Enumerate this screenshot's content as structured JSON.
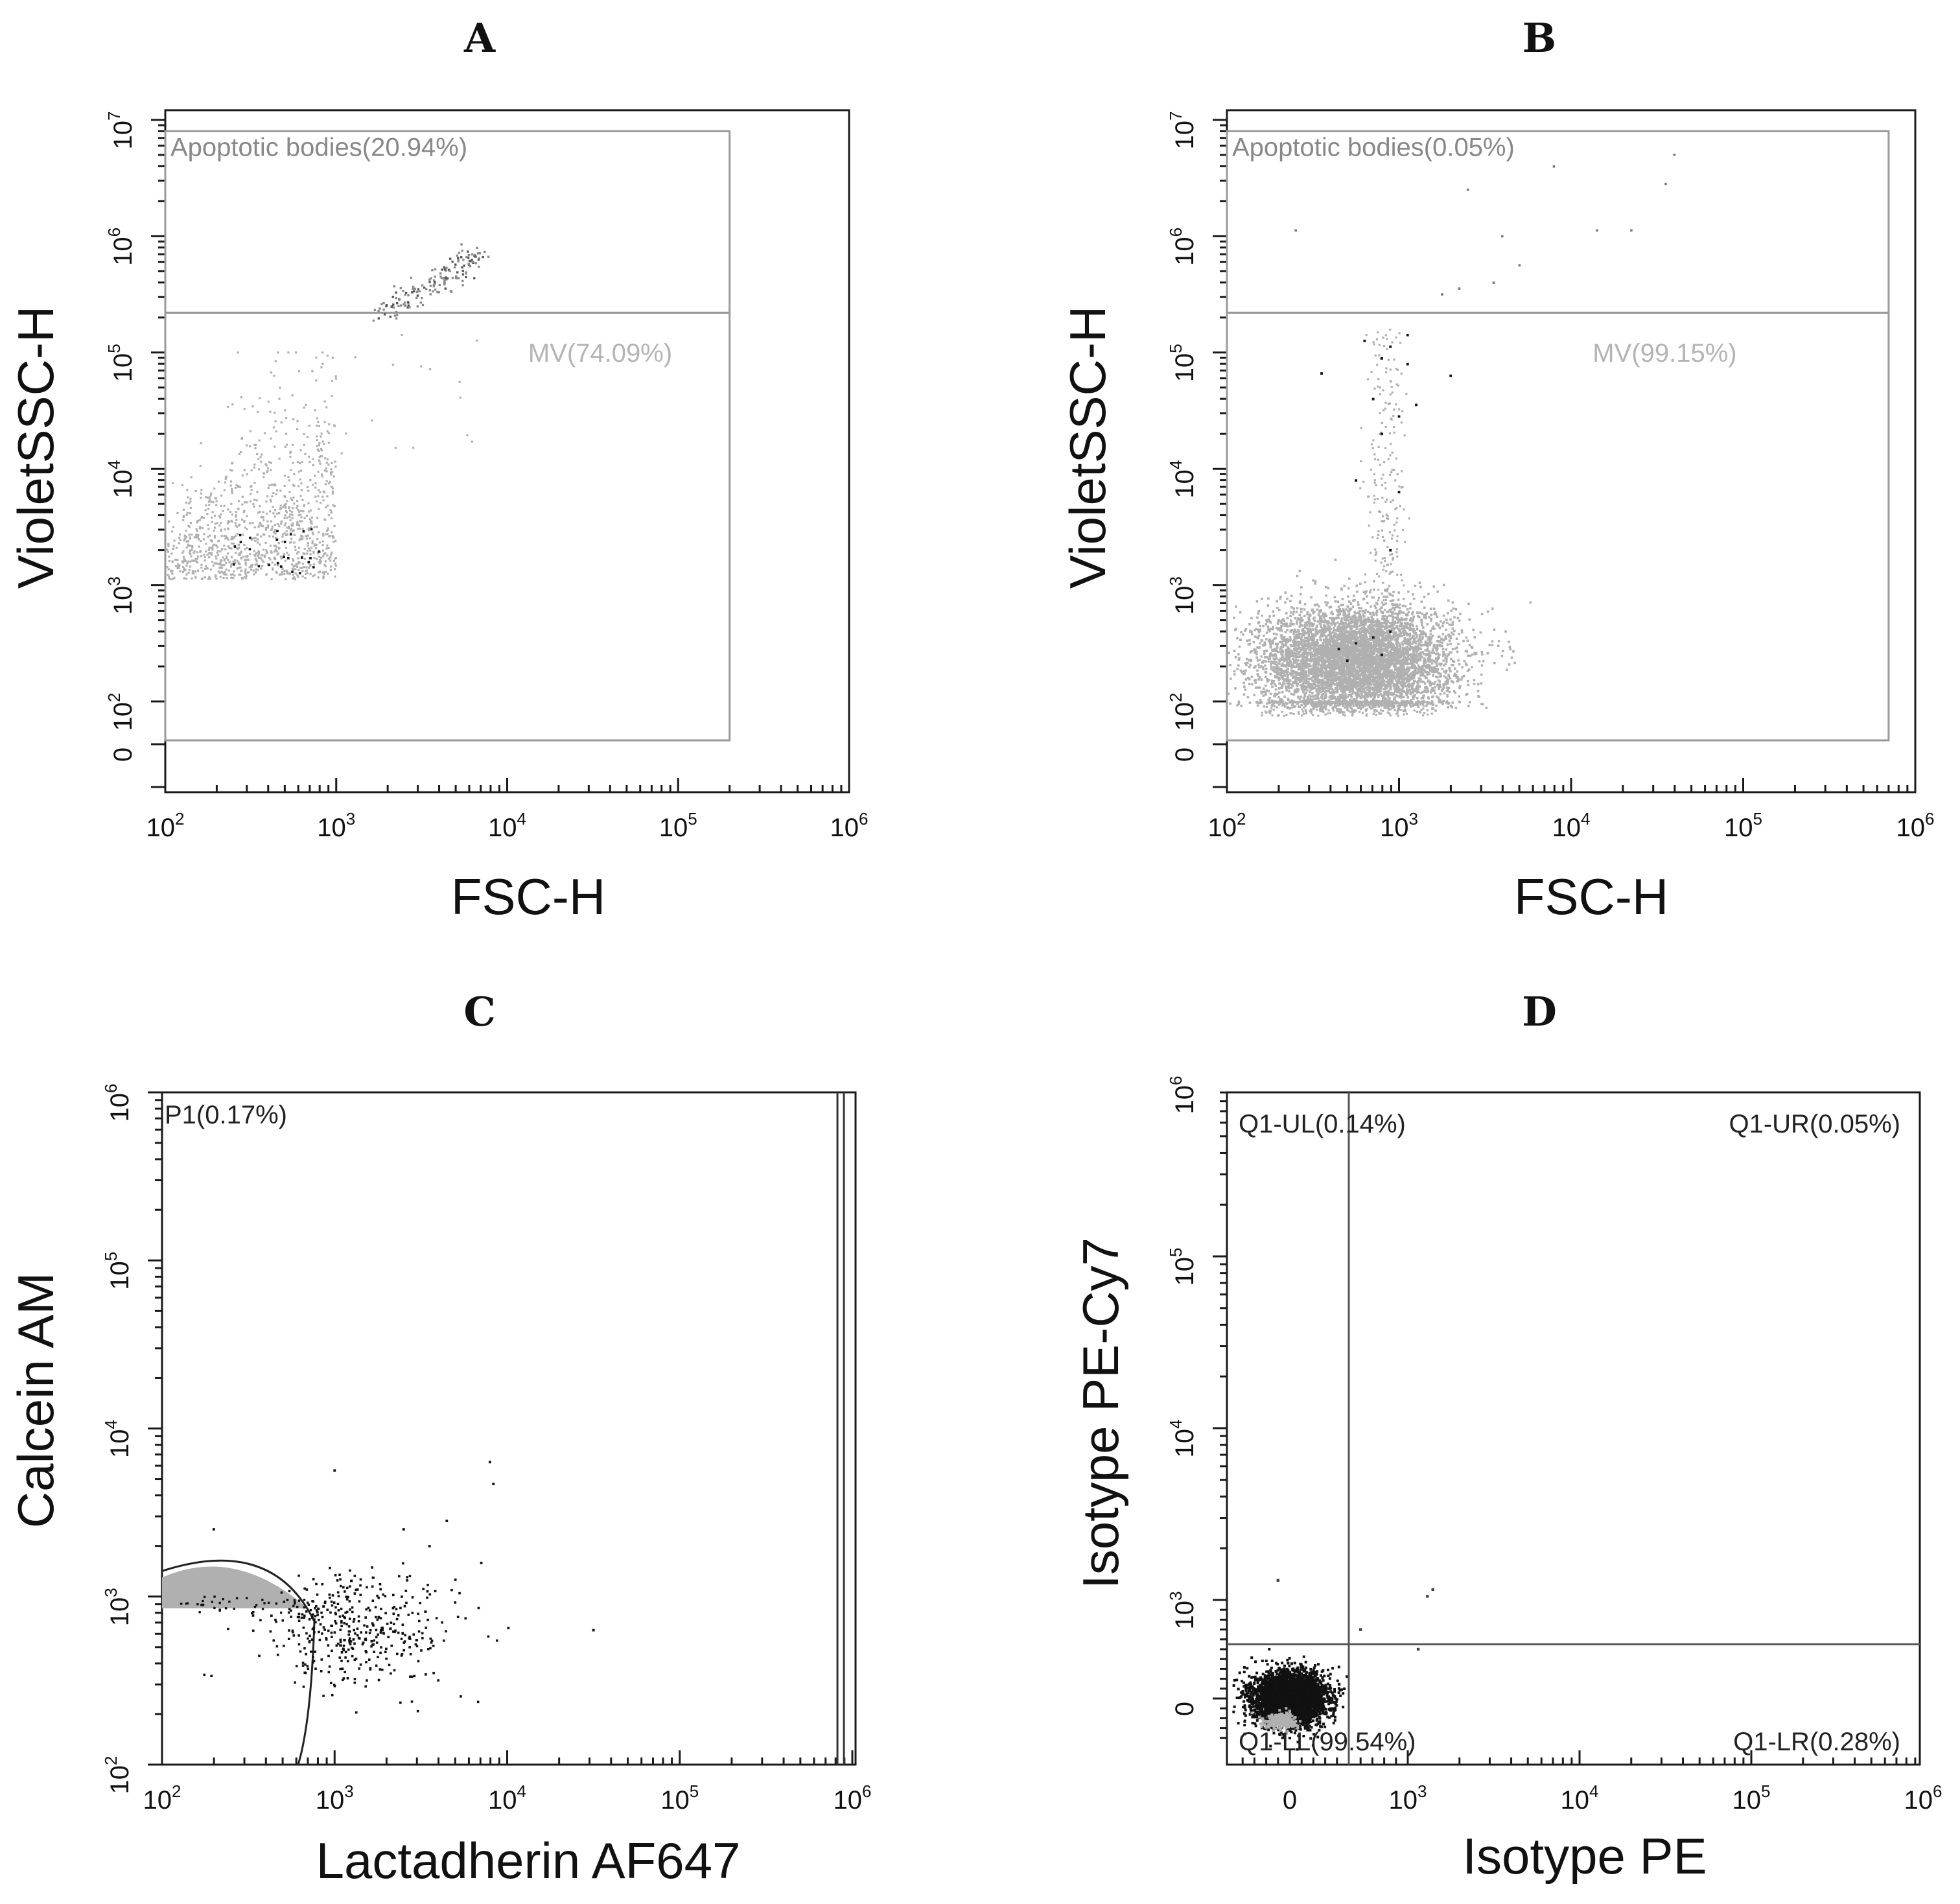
{
  "figure": {
    "colors": {
      "axis": "#1a1a1a",
      "events_light": "#b0b0b0",
      "events_mid": "#8a8a8a",
      "events_dark": "#111111",
      "gate_line": "#9a9a9a",
      "gate_text": "#888888",
      "gate_text_light": "#b4b4b4",
      "quad_line": "#555555",
      "quad_text": "#222222"
    }
  },
  "chart_data": [
    {
      "panel": "A",
      "type": "scatter",
      "xlabel": "FSC-H",
      "ylabel": "VioletSSC-H",
      "x_scale": "log",
      "y_scale": "biexponential",
      "xlim": [
        100,
        1000000
      ],
      "ylim": [
        0,
        10000000
      ],
      "x_ticks": [
        {
          "base": "10",
          "exp": "2"
        },
        {
          "base": "10",
          "exp": "3"
        },
        {
          "base": "10",
          "exp": "4"
        },
        {
          "base": "10",
          "exp": "5"
        },
        {
          "base": "10",
          "exp": "6"
        }
      ],
      "y_ticks": [
        {
          "base": "0",
          "exp": ""
        },
        {
          "base": "10",
          "exp": "2"
        },
        {
          "base": "10",
          "exp": "3"
        },
        {
          "base": "10",
          "exp": "4"
        },
        {
          "base": "10",
          "exp": "5"
        },
        {
          "base": "10",
          "exp": "6"
        },
        {
          "base": "10",
          "exp": "7"
        }
      ],
      "gates": [
        {
          "name": "Apoptotic bodies",
          "label": "Apoptotic bodies(20.94%)",
          "percent": 20.94,
          "x_range": [
            100,
            200000
          ],
          "y_range": [
            220000,
            8000000
          ]
        },
        {
          "name": "MV",
          "label": "MV(74.09%)",
          "percent": 74.09,
          "x_range": [
            100,
            200000
          ],
          "y_range": [
            0,
            220000
          ]
        }
      ],
      "populations": [
        {
          "name": "apoptotic bodies cluster",
          "x_center": 3500,
          "y_center": 350000,
          "count": 130,
          "shade": "mid"
        },
        {
          "name": "microvesicle cloud",
          "x_range": [
            100,
            1000
          ],
          "y_range": [
            1100,
            80000
          ],
          "count": 1100,
          "shade": "light"
        }
      ]
    },
    {
      "panel": "B",
      "type": "scatter",
      "xlabel": "FSC-H",
      "ylabel": "VioletSSC-H",
      "x_scale": "log",
      "y_scale": "biexponential",
      "xlim": [
        100,
        1000000
      ],
      "ylim": [
        0,
        10000000
      ],
      "x_ticks": [
        {
          "base": "10",
          "exp": "2"
        },
        {
          "base": "10",
          "exp": "3"
        },
        {
          "base": "10",
          "exp": "4"
        },
        {
          "base": "10",
          "exp": "5"
        },
        {
          "base": "10",
          "exp": "6"
        }
      ],
      "y_ticks": [
        {
          "base": "0",
          "exp": ""
        },
        {
          "base": "10",
          "exp": "2"
        },
        {
          "base": "10",
          "exp": "3"
        },
        {
          "base": "10",
          "exp": "4"
        },
        {
          "base": "10",
          "exp": "5"
        },
        {
          "base": "10",
          "exp": "6"
        },
        {
          "base": "10",
          "exp": "7"
        }
      ],
      "gates": [
        {
          "name": "Apoptotic bodies",
          "label": "Apoptotic bodies(0.05%)",
          "percent": 0.05,
          "x_range": [
            100,
            700000
          ],
          "y_range": [
            220000,
            8000000
          ]
        },
        {
          "name": "MV",
          "label": "MV(99.15%)",
          "percent": 99.15,
          "x_range": [
            100,
            700000
          ],
          "y_range": [
            0,
            220000
          ]
        }
      ],
      "populations": [
        {
          "name": "dense microvesicle population",
          "x_center": 550,
          "y_center": 250,
          "count": 6000,
          "shade": "light"
        },
        {
          "name": "vertical streak",
          "x_center": 800,
          "y_range": [
            400,
            150000
          ],
          "count": 220,
          "shade": "light"
        }
      ]
    },
    {
      "panel": "C",
      "type": "scatter",
      "xlabel": "Lactadherin AF647",
      "ylabel": "Calcein AM",
      "x_scale": "log",
      "y_scale": "log",
      "xlim": [
        100,
        1000000
      ],
      "ylim": [
        100,
        1000000
      ],
      "x_ticks": [
        {
          "base": "10",
          "exp": "2"
        },
        {
          "base": "10",
          "exp": "3"
        },
        {
          "base": "10",
          "exp": "4"
        },
        {
          "base": "10",
          "exp": "5"
        },
        {
          "base": "10",
          "exp": "6"
        }
      ],
      "y_ticks": [
        {
          "base": "10",
          "exp": "2"
        },
        {
          "base": "10",
          "exp": "3"
        },
        {
          "base": "10",
          "exp": "4"
        },
        {
          "base": "10",
          "exp": "5"
        },
        {
          "base": "10",
          "exp": "6"
        }
      ],
      "gates": [
        {
          "name": "P1",
          "label": "P1(0.17%)",
          "percent": 0.17,
          "x_range": [
            100,
            820000
          ],
          "y_range": [
            100,
            1000000
          ]
        }
      ],
      "populations": [
        {
          "name": "saturated population at axis",
          "x_range": [
            100,
            700
          ],
          "y_range": [
            850,
            1500
          ],
          "shade": "light"
        },
        {
          "name": "positive events",
          "x_center": 2000,
          "y_center": 650,
          "count": 420,
          "shade": "dark"
        }
      ]
    },
    {
      "panel": "D",
      "type": "scatter",
      "xlabel": "Isotype PE",
      "ylabel": "Isotype PE-Cy7",
      "x_scale": "biexponential",
      "y_scale": "biexponential",
      "xlim": [
        -200,
        1000000
      ],
      "ylim": [
        -200,
        1000000
      ],
      "x_ticks": [
        {
          "base": "0",
          "exp": ""
        },
        {
          "base": "10",
          "exp": "3"
        },
        {
          "base": "10",
          "exp": "4"
        },
        {
          "base": "10",
          "exp": "5"
        },
        {
          "base": "10",
          "exp": "6"
        }
      ],
      "y_ticks": [
        {
          "base": "0",
          "exp": ""
        },
        {
          "base": "10",
          "exp": "3"
        },
        {
          "base": "10",
          "exp": "4"
        },
        {
          "base": "10",
          "exp": "5"
        },
        {
          "base": "10",
          "exp": "6"
        }
      ],
      "quadrant_threshold": {
        "x": 500,
        "y": 550
      },
      "quadrants": [
        {
          "name": "Q1-UL",
          "label": "Q1-UL(0.14%)",
          "percent": 0.14
        },
        {
          "name": "Q1-UR",
          "label": "Q1-UR(0.05%)",
          "percent": 0.05
        },
        {
          "name": "Q1-LL",
          "label": "Q1-LL(99.54%)",
          "percent": 99.54
        },
        {
          "name": "Q1-LR",
          "label": "Q1-LR(0.28%)",
          "percent": 0.28
        }
      ],
      "populations": [
        {
          "name": "negative population",
          "x_center": 0,
          "y_center": 0,
          "count": 4000,
          "shade": "dark"
        }
      ]
    }
  ]
}
